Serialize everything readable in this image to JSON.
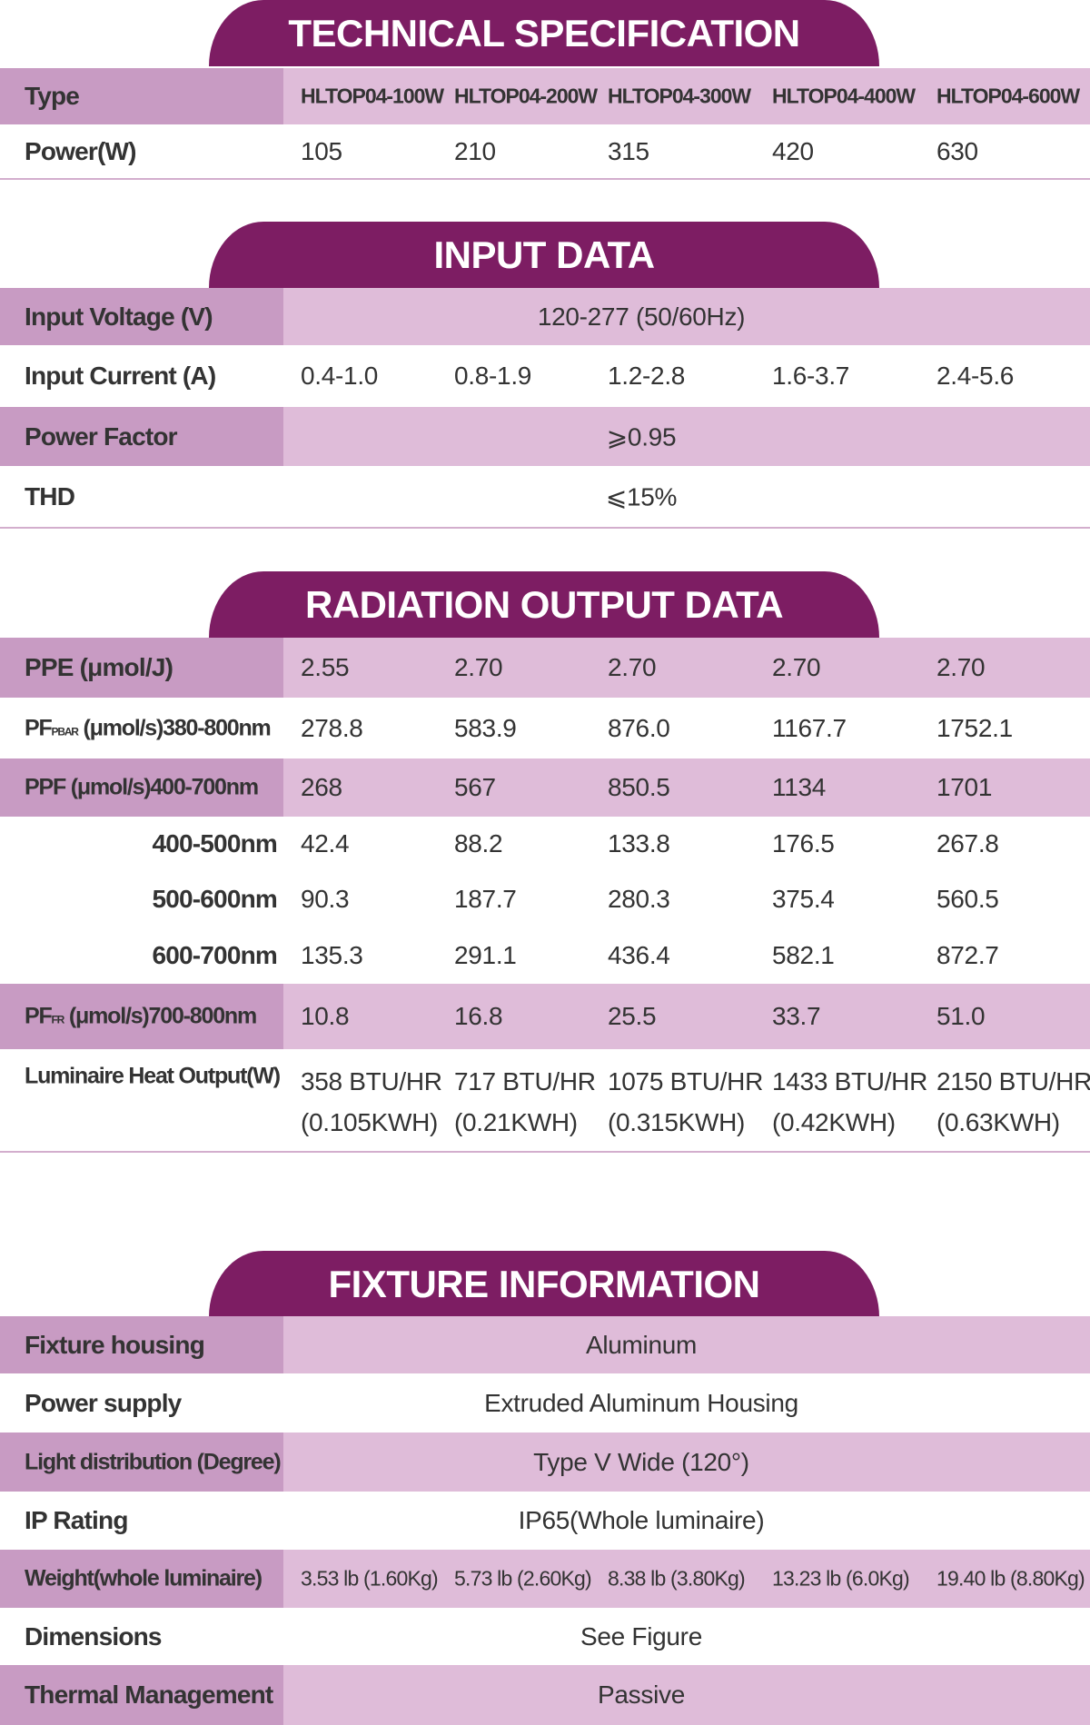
{
  "sections": [
    {
      "title": "TECHNICAL SPECIFICATION",
      "rows": [
        {
          "label": "Type",
          "shaded": true,
          "cells": [
            "HLTOP04-100W",
            "HLTOP04-200W",
            "HLTOP04-300W",
            "HLTOP04-400W",
            "HLTOP04-600W"
          ]
        },
        {
          "label": "Power(W)",
          "shaded": false,
          "cells": [
            "105",
            "210",
            "315",
            "420",
            "630"
          ]
        }
      ]
    },
    {
      "title": "INPUT DATA",
      "rows": [
        {
          "label": "Input Voltage (V)",
          "shaded": true,
          "span": "120-277 (50/60Hz)"
        },
        {
          "label": "Input Current (A)",
          "shaded": false,
          "cells": [
            "0.4-1.0",
            "0.8-1.9",
            "1.2-2.8",
            "1.6-3.7",
            "2.4-5.6"
          ]
        },
        {
          "label": "Power Factor",
          "shaded": true,
          "span": "⩾0.95"
        },
        {
          "label": "THD",
          "shaded": false,
          "span": "⩽15%"
        }
      ]
    },
    {
      "title": "RADIATION OUTPUT DATA",
      "rows": [
        {
          "label": "PPE (μmol/J)",
          "shaded": true,
          "cells": [
            "2.55",
            "2.70",
            "2.70",
            "2.70",
            "2.70"
          ]
        },
        {
          "label": "PF",
          "label_sub": "PBAR",
          "label_suffix": " (μmol/s)380-800nm",
          "shaded": false,
          "cells": [
            "278.8",
            "583.9",
            "876.0",
            "1167.7",
            "1752.1"
          ]
        },
        {
          "label": "PPF (μmol/s)400-700nm",
          "shaded": true,
          "cells": [
            "268",
            "567",
            "850.5",
            "1134",
            "1701"
          ]
        },
        {
          "label": "400-500nm",
          "shaded": false,
          "cells": [
            "42.4",
            "88.2",
            "133.8",
            "176.5",
            "267.8"
          ]
        },
        {
          "label": "500-600nm",
          "shaded": false,
          "cells": [
            "90.3",
            "187.7",
            "280.3",
            "375.4",
            "560.5"
          ]
        },
        {
          "label": "600-700nm",
          "shaded": false,
          "cells": [
            "135.3",
            "291.1",
            "436.4",
            "582.1",
            "872.7"
          ]
        },
        {
          "label": "PF",
          "label_sub": "FR",
          "label_suffix": " (μmol/s)700-800nm",
          "shaded": true,
          "cells": [
            "10.8",
            "16.8",
            "25.5",
            "33.7",
            "51.0"
          ]
        },
        {
          "label": "Luminaire Heat Output(W)",
          "shaded": false,
          "cells": [
            [
              "358 BTU/HR",
              "(0.105KWH)"
            ],
            [
              "717 BTU/HR",
              "(0.21KWH)"
            ],
            [
              "1075 BTU/HR",
              "(0.315KWH)"
            ],
            [
              "1433 BTU/HR",
              "(0.42KWH)"
            ],
            [
              "2150 BTU/HR",
              "(0.63KWH)"
            ]
          ]
        }
      ]
    },
    {
      "title": "FIXTURE INFORMATION",
      "rows": [
        {
          "label": "Fixture housing",
          "shaded": true,
          "span": "Aluminum"
        },
        {
          "label": "Power supply",
          "shaded": false,
          "span": "Extruded Aluminum Housing"
        },
        {
          "label": "Light distribution (Degree)",
          "shaded": true,
          "span": "Type V  Wide (120°)"
        },
        {
          "label": "IP Rating",
          "shaded": false,
          "span": "IP65(Whole luminaire)"
        },
        {
          "label": "Weight(whole luminaire)",
          "shaded": true,
          "cells": [
            "3.53 lb (1.60Kg)",
            "5.73 lb (2.60Kg)",
            "8.38 lb (3.80Kg)",
            "13.23 lb (6.0Kg)",
            "19.40 lb (8.80Kg)"
          ]
        },
        {
          "label": "Dimensions",
          "shaded": false,
          "span": "See Figure"
        },
        {
          "label": "Thermal Management",
          "shaded": true,
          "span": "Passive"
        }
      ]
    }
  ]
}
